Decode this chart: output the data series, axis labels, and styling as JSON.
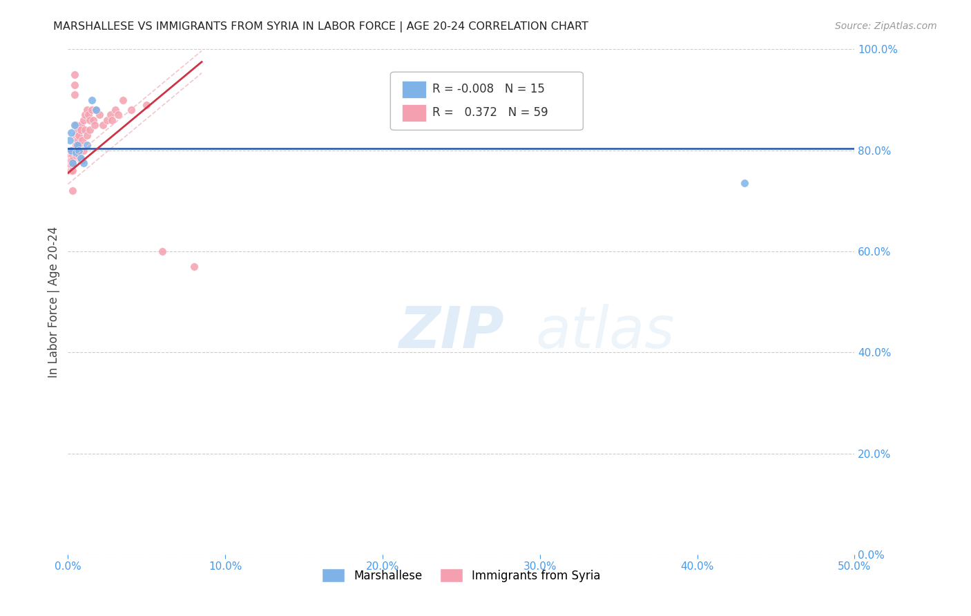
{
  "title": "MARSHALLESE VS IMMIGRANTS FROM SYRIA IN LABOR FORCE | AGE 20-24 CORRELATION CHART",
  "source": "Source: ZipAtlas.com",
  "ylabel": "In Labor Force | Age 20-24",
  "xlim": [
    0.0,
    0.5
  ],
  "ylim": [
    0.0,
    1.0
  ],
  "xtick_labels": [
    "0.0%",
    "10.0%",
    "20.0%",
    "30.0%",
    "40.0%",
    "50.0%"
  ],
  "xtick_vals": [
    0.0,
    0.1,
    0.2,
    0.3,
    0.4,
    0.5
  ],
  "ytick_labels": [
    "100.0%",
    "80.0%",
    "60.0%",
    "40.0%",
    "20.0%",
    "0.0%"
  ],
  "ytick_vals": [
    1.0,
    0.8,
    0.6,
    0.4,
    0.2,
    0.0
  ],
  "grid_color": "#cccccc",
  "background_color": "#ffffff",
  "watermark_line1": "ZIP",
  "watermark_line2": "atlas",
  "legend_blue_R": "-0.008",
  "legend_blue_N": "15",
  "legend_pink_R": "0.372",
  "legend_pink_N": "59",
  "blue_scatter_x": [
    0.001,
    0.002,
    0.002,
    0.003,
    0.004,
    0.005,
    0.006,
    0.007,
    0.008,
    0.01,
    0.012,
    0.015,
    0.018,
    0.22,
    0.43
  ],
  "blue_scatter_y": [
    0.82,
    0.8,
    0.835,
    0.775,
    0.85,
    0.795,
    0.81,
    0.8,
    0.785,
    0.775,
    0.81,
    0.9,
    0.88,
    0.86,
    0.735
  ],
  "pink_scatter_x": [
    0.001,
    0.001,
    0.001,
    0.001,
    0.001,
    0.002,
    0.002,
    0.002,
    0.002,
    0.002,
    0.003,
    0.003,
    0.003,
    0.003,
    0.003,
    0.003,
    0.004,
    0.004,
    0.004,
    0.005,
    0.005,
    0.005,
    0.005,
    0.006,
    0.006,
    0.006,
    0.007,
    0.007,
    0.007,
    0.008,
    0.008,
    0.008,
    0.009,
    0.009,
    0.01,
    0.01,
    0.011,
    0.011,
    0.012,
    0.012,
    0.013,
    0.014,
    0.014,
    0.015,
    0.016,
    0.017,
    0.018,
    0.02,
    0.022,
    0.025,
    0.027,
    0.028,
    0.03,
    0.032,
    0.035,
    0.04,
    0.05,
    0.06,
    0.08
  ],
  "pink_scatter_y": [
    0.8,
    0.8,
    0.785,
    0.775,
    0.76,
    0.8,
    0.79,
    0.78,
    0.77,
    0.76,
    0.8,
    0.79,
    0.78,
    0.77,
    0.76,
    0.72,
    0.95,
    0.93,
    0.91,
    0.85,
    0.83,
    0.81,
    0.79,
    0.84,
    0.82,
    0.8,
    0.83,
    0.81,
    0.79,
    0.85,
    0.84,
    0.78,
    0.82,
    0.78,
    0.86,
    0.8,
    0.87,
    0.84,
    0.88,
    0.83,
    0.87,
    0.86,
    0.84,
    0.88,
    0.86,
    0.85,
    0.88,
    0.87,
    0.85,
    0.86,
    0.87,
    0.86,
    0.88,
    0.87,
    0.9,
    0.88,
    0.89,
    0.6,
    0.57
  ],
  "blue_trend_y_val": 0.804,
  "pink_trend_x0": 0.0,
  "pink_trend_x1": 0.085,
  "pink_trend_y0": 0.755,
  "pink_trend_y1": 0.975,
  "scatter_size": 70,
  "blue_color": "#7fb3e8",
  "pink_color": "#f5a0b0",
  "blue_line_color": "#2255aa",
  "pink_line_color": "#cc3344",
  "pink_dashed_color": "#f0c0c8",
  "tick_color": "#4499ee",
  "legend_border_color": "#bbbbbb"
}
